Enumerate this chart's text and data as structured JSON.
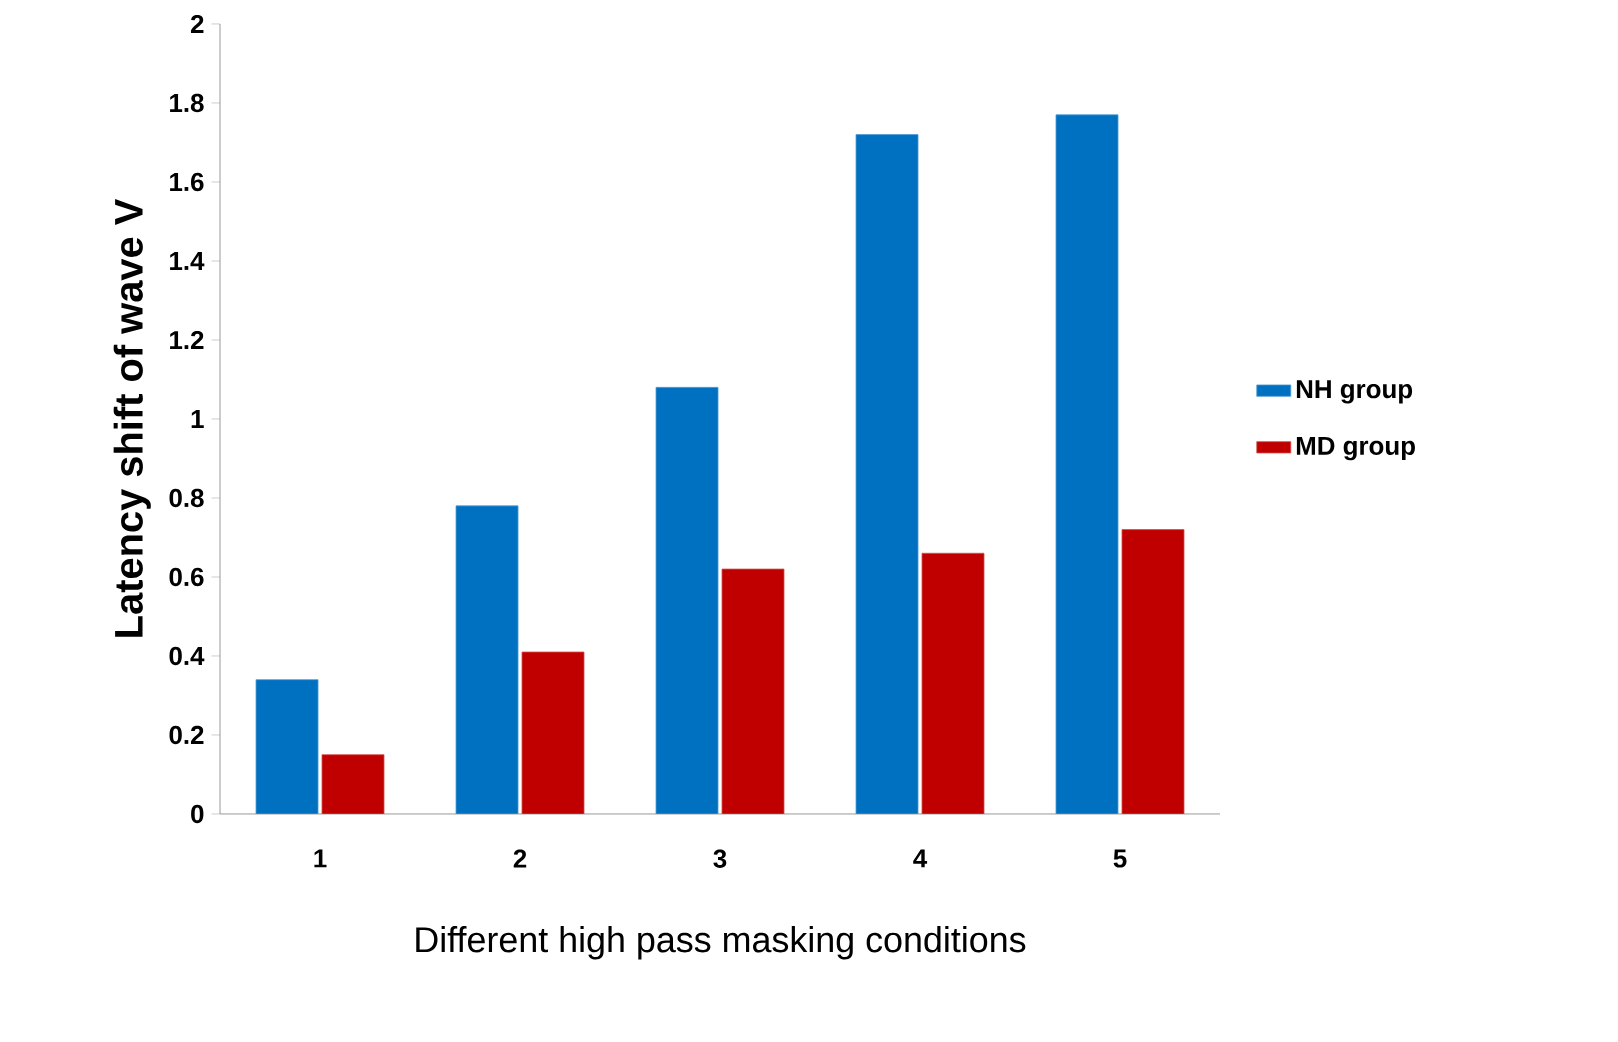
{
  "chart_data": {
    "type": "bar",
    "xlabel": "Different high pass masking conditions",
    "ylabel": "Latency shift of wave V",
    "categories": [
      "1",
      "2",
      "3",
      "4",
      "5"
    ],
    "series": [
      {
        "name": "NH group",
        "color": "#0070c0",
        "values": [
          0.34,
          0.78,
          1.08,
          1.72,
          1.77
        ]
      },
      {
        "name": "MD group",
        "color": "#c00000",
        "values": [
          0.15,
          0.41,
          0.62,
          0.66,
          0.72
        ]
      }
    ],
    "ylim": [
      0,
      2
    ],
    "yticks": [
      0,
      0.2,
      0.4,
      0.6,
      0.8,
      1,
      1.2,
      1.4,
      1.6,
      1.8,
      2
    ],
    "grid": false,
    "legend": "right"
  }
}
